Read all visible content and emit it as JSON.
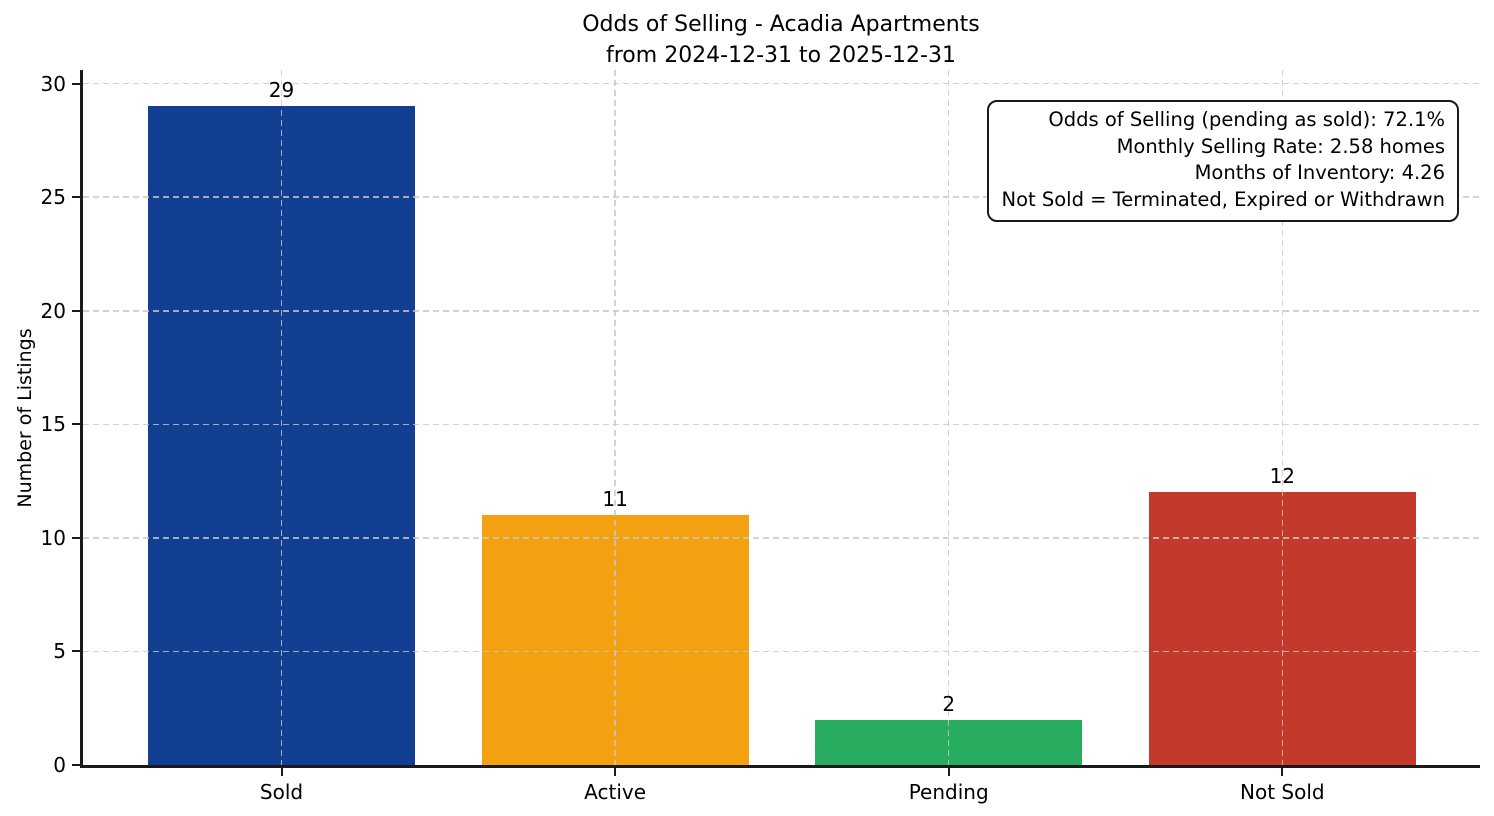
{
  "chart_data": {
    "type": "bar",
    "title": "Odds of Selling - Acadia Apartments",
    "subtitle": "from 2024-12-31 to 2025-12-31",
    "ylabel": "Number of Listings",
    "xlabel": "",
    "categories": [
      "Sold",
      "Active",
      "Pending",
      "Not Sold"
    ],
    "values": [
      29,
      11,
      2,
      12
    ],
    "bar_colors": [
      "#123f92",
      "#f3a011",
      "#28ad60",
      "#c33a2c"
    ],
    "yticks": [
      0,
      5,
      10,
      15,
      20,
      25,
      30
    ],
    "ylim": [
      0,
      30.6
    ],
    "grid": {
      "show": true,
      "style": "dashed",
      "color": "#c8c8c8",
      "axes": "both"
    },
    "legend_position": "none",
    "background_color": "#ffffff",
    "text_color": "#000000",
    "annotation": {
      "lines": [
        "Odds of Selling (pending as sold): 72.1%",
        "Monthly Selling Rate: 2.58 homes",
        "Months of Inventory: 4.26",
        "Not Sold = Terminated, Expired or Withdrawn"
      ]
    }
  }
}
